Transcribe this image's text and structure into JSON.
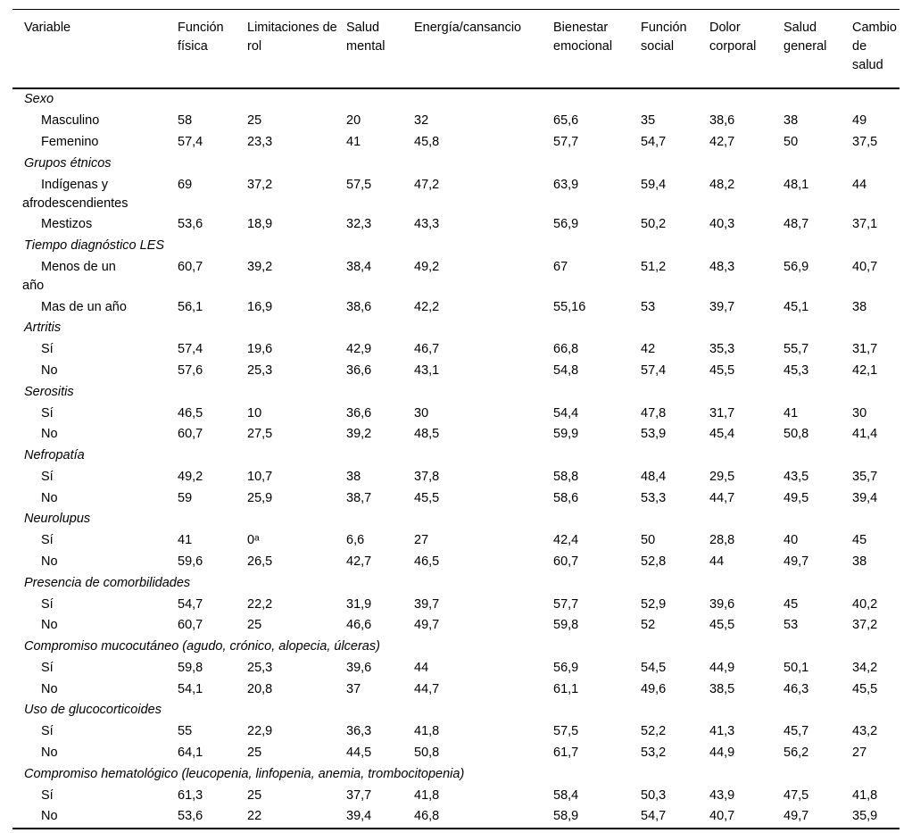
{
  "table": {
    "columns": [
      "Variable",
      "Función física",
      "Limitaciones de rol",
      "Salud mental",
      "Energía/cansancio",
      "Bienestar emocional",
      "Función social",
      "Dolor corporal",
      "Salud general",
      "Cambio de salud"
    ],
    "sections": [
      {
        "label": "Sexo",
        "rows": [
          {
            "label": "Masculino",
            "values": [
              "58",
              "25",
              "20",
              "32",
              "65,6",
              "35",
              "38,6",
              "38",
              "49"
            ]
          },
          {
            "label": "Femenino",
            "values": [
              "57,4",
              "23,3",
              "41",
              "45,8",
              "57,7",
              "54,7",
              "42,7",
              "50",
              "37,5"
            ]
          }
        ]
      },
      {
        "label": "Grupos étnicos",
        "rows": [
          {
            "label": "Indígenas y\nafrodescendientes",
            "values": [
              "69",
              "37,2",
              "57,5",
              "47,2",
              "63,9",
              "59,4",
              "48,2",
              "48,1",
              "44"
            ]
          },
          {
            "label": "Mestizos",
            "values": [
              "53,6",
              "18,9",
              "32,3",
              "43,3",
              "56,9",
              "50,2",
              "40,3",
              "48,7",
              "37,1"
            ]
          }
        ]
      },
      {
        "label": "Tiempo diagnóstico LES",
        "rows": [
          {
            "label": "Menos de un\naño",
            "values": [
              "60,7",
              "39,2",
              "38,4",
              "49,2",
              "67",
              "51,2",
              "48,3",
              "56,9",
              "40,7"
            ]
          },
          {
            "label": "Mas de un año",
            "values": [
              "56,1",
              "16,9",
              "38,6",
              "42,2",
              "55,16",
              "53",
              "39,7",
              "45,1",
              "38"
            ]
          }
        ]
      },
      {
        "label": "Artritis",
        "rows": [
          {
            "label": "Sí",
            "values": [
              "57,4",
              "19,6",
              "42,9",
              "46,7",
              "66,8",
              "42",
              "35,3",
              "55,7",
              "31,7"
            ]
          },
          {
            "label": "No",
            "values": [
              "57,6",
              "25,3",
              "36,6",
              "43,1",
              "54,8",
              "57,4",
              "45,5",
              "45,3",
              "42,1"
            ]
          }
        ]
      },
      {
        "label": "Serositis",
        "rows": [
          {
            "label": "Sí",
            "values": [
              "46,5",
              "10",
              "36,6",
              "30",
              "54,4",
              "47,8",
              "31,7",
              "41",
              "30"
            ]
          },
          {
            "label": "No",
            "values": [
              "60,7",
              "27,5",
              "39,2",
              "48,5",
              "59,9",
              "53,9",
              "45,4",
              "50,8",
              "41,4"
            ]
          }
        ]
      },
      {
        "label": "Nefropatía",
        "rows": [
          {
            "label": "Sí",
            "values": [
              "49,2",
              "10,7",
              "38",
              "37,8",
              "58,8",
              "48,4",
              "29,5",
              "43,5",
              "35,7"
            ]
          },
          {
            "label": "No",
            "values": [
              "59",
              "25,9",
              "38,7",
              "45,5",
              "58,6",
              "53,3",
              "44,7",
              "49,5",
              "39,4"
            ]
          }
        ]
      },
      {
        "label": "Neurolupus",
        "rows": [
          {
            "label": "Sí",
            "values": [
              "41",
              "0ᵃ",
              "6,6",
              "27",
              "42,4",
              "50",
              "28,8",
              "40",
              "45"
            ]
          },
          {
            "label": "No",
            "values": [
              "59,6",
              "26,5",
              "42,7",
              "46,5",
              "60,7",
              "52,8",
              "44",
              "49,7",
              "38"
            ]
          }
        ]
      },
      {
        "label": "Presencia de comorbilidades",
        "rows": [
          {
            "label": "Sí",
            "values": [
              "54,7",
              "22,2",
              "31,9",
              "39,7",
              "57,7",
              "52,9",
              "39,6",
              "45",
              "40,2"
            ]
          },
          {
            "label": "No",
            "values": [
              "60,7",
              "25",
              "46,6",
              "49,7",
              "59,8",
              "52",
              "45,5",
              "53",
              "37,2"
            ]
          }
        ]
      },
      {
        "label": "Compromiso mucocutáneo (agudo, crónico, alopecia, úlceras)",
        "rows": [
          {
            "label": "Sí",
            "values": [
              "59,8",
              "25,3",
              "39,6",
              "44",
              "56,9",
              "54,5",
              "44,9",
              "50,1",
              "34,2"
            ]
          },
          {
            "label": "No",
            "values": [
              "54,1",
              "20,8",
              "37",
              "44,7",
              "61,1",
              "49,6",
              "38,5",
              "46,3",
              "45,5"
            ]
          }
        ]
      },
      {
        "label": "Uso de glucocorticoides",
        "rows": [
          {
            "label": "Sí",
            "values": [
              "55",
              "22,9",
              "36,3",
              "41,8",
              "57,5",
              "52,2",
              "41,3",
              "45,7",
              "43,2"
            ]
          },
          {
            "label": "No",
            "values": [
              "64,1",
              "25",
              "44,5",
              "50,8",
              "61,7",
              "53,2",
              "44,9",
              "56,2",
              "27"
            ]
          }
        ]
      },
      {
        "label": "Compromiso hematológico (leucopenia, linfopenia, anemia, trombocitopenia)",
        "rows": [
          {
            "label": "Sí",
            "values": [
              "61,3",
              "25",
              "37,7",
              "41,8",
              "58,4",
              "50,3",
              "43,9",
              "47,5",
              "41,8"
            ]
          },
          {
            "label": "No",
            "values": [
              "53,6",
              "22",
              "39,4",
              "46,8",
              "58,9",
              "54,7",
              "40,7",
              "49,7",
              "35,9"
            ]
          }
        ]
      }
    ]
  }
}
